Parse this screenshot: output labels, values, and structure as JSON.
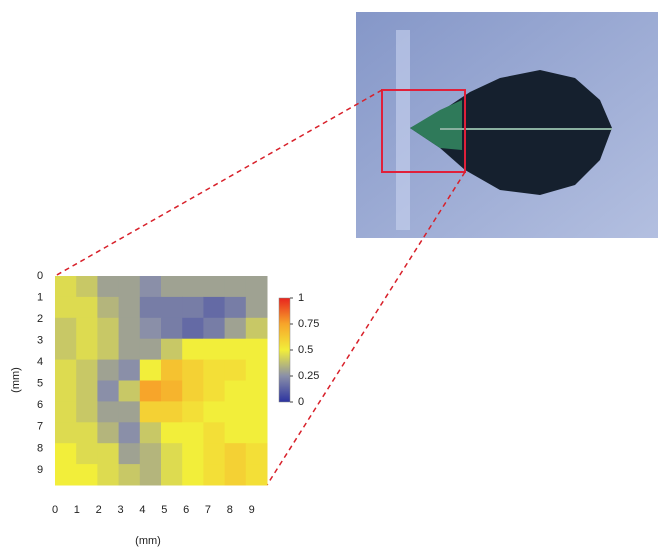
{
  "chart_data": {
    "type": "heatmap",
    "x_label": "(mm)",
    "y_label": "(mm)",
    "xlim": [
      0,
      9.7
    ],
    "ylim": [
      0,
      9.7
    ],
    "xticks": [
      0,
      1,
      2,
      3,
      4,
      5,
      6,
      7,
      8,
      9
    ],
    "yticks": [
      0,
      1,
      2,
      3,
      4,
      5,
      6,
      7,
      8,
      9
    ],
    "values": [
      [
        0.45,
        0.4,
        0.3,
        0.3,
        0.25,
        0.3,
        0.3,
        0.3,
        0.3,
        0.3
      ],
      [
        0.45,
        0.45,
        0.35,
        0.3,
        0.2,
        0.2,
        0.2,
        0.15,
        0.2,
        0.3
      ],
      [
        0.4,
        0.45,
        0.4,
        0.3,
        0.25,
        0.2,
        0.15,
        0.2,
        0.3,
        0.4
      ],
      [
        0.4,
        0.45,
        0.4,
        0.3,
        0.3,
        0.4,
        0.5,
        0.5,
        0.5,
        0.5
      ],
      [
        0.45,
        0.4,
        0.3,
        0.25,
        0.5,
        0.65,
        0.6,
        0.55,
        0.55,
        0.5
      ],
      [
        0.45,
        0.4,
        0.25,
        0.4,
        0.75,
        0.7,
        0.6,
        0.55,
        0.5,
        0.5
      ],
      [
        0.45,
        0.4,
        0.3,
        0.3,
        0.6,
        0.6,
        0.55,
        0.5,
        0.5,
        0.5
      ],
      [
        0.45,
        0.45,
        0.35,
        0.25,
        0.4,
        0.5,
        0.5,
        0.55,
        0.5,
        0.5
      ],
      [
        0.5,
        0.45,
        0.45,
        0.3,
        0.35,
        0.45,
        0.5,
        0.55,
        0.6,
        0.55
      ],
      [
        0.5,
        0.5,
        0.45,
        0.4,
        0.35,
        0.45,
        0.5,
        0.55,
        0.6,
        0.55
      ]
    ],
    "colorscale": [
      [
        0,
        "#2c33a0"
      ],
      [
        0.25,
        "#8a8fa8"
      ],
      [
        0.5,
        "#f2ee3a"
      ],
      [
        0.75,
        "#f7a52a"
      ],
      [
        1,
        "#e8241e"
      ]
    ],
    "clim": [
      0,
      1
    ],
    "cticks": [
      0,
      0.25,
      0.5,
      0.75,
      1
    ]
  }
}
